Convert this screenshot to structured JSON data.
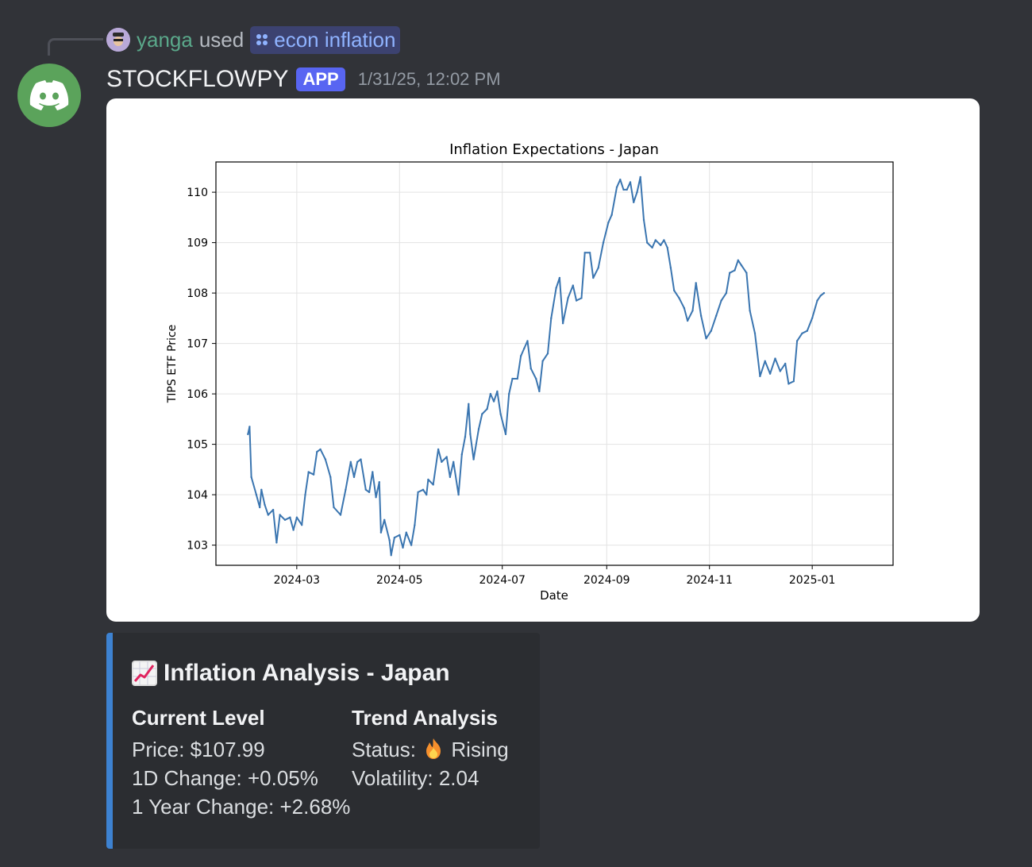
{
  "reply": {
    "user": "yanga",
    "used": "used",
    "command": "econ inflation"
  },
  "message": {
    "author": "STOCKFLOWPY",
    "app_tag": "APP",
    "timestamp": "1/31/25, 12:02 PM",
    "avatar_icon": "discord-logo-icon",
    "avatar_color": "#5ba35b"
  },
  "chart_data": {
    "type": "line",
    "title": "Inflation Expectations - Japan",
    "xlabel": "Date",
    "ylabel": "TIPS ETF Price",
    "grid": true,
    "line_color": "#3a75b0",
    "x_ticks": [
      "2024-03",
      "2024-05",
      "2024-07",
      "2024-09",
      "2024-11",
      "2025-01"
    ],
    "y_ticks": [
      103,
      104,
      105,
      106,
      107,
      108,
      109,
      110
    ],
    "xlim": [
      "2024-01-13",
      "2025-02-18"
    ],
    "ylim": [
      102.6,
      110.6
    ],
    "series": [
      {
        "points": [
          [
            "2024-02-01",
            105.2
          ],
          [
            "2024-02-02",
            105.35
          ],
          [
            "2024-02-03",
            104.35
          ],
          [
            "2024-02-06",
            104.0
          ],
          [
            "2024-02-08",
            103.75
          ],
          [
            "2024-02-09",
            104.1
          ],
          [
            "2024-02-11",
            103.8
          ],
          [
            "2024-02-13",
            103.6
          ],
          [
            "2024-02-16",
            103.7
          ],
          [
            "2024-02-18",
            103.05
          ],
          [
            "2024-02-20",
            103.6
          ],
          [
            "2024-02-23",
            103.5
          ],
          [
            "2024-02-26",
            103.55
          ],
          [
            "2024-02-28",
            103.3
          ],
          [
            "2024-03-01",
            103.55
          ],
          [
            "2024-03-04",
            103.4
          ],
          [
            "2024-03-06",
            104.0
          ],
          [
            "2024-03-08",
            104.45
          ],
          [
            "2024-03-11",
            104.4
          ],
          [
            "2024-03-13",
            104.85
          ],
          [
            "2024-03-15",
            104.9
          ],
          [
            "2024-03-18",
            104.7
          ],
          [
            "2024-03-21",
            104.35
          ],
          [
            "2024-03-23",
            103.75
          ],
          [
            "2024-03-27",
            103.6
          ],
          [
            "2024-03-30",
            104.1
          ],
          [
            "2024-04-02",
            104.65
          ],
          [
            "2024-04-04",
            104.35
          ],
          [
            "2024-04-06",
            104.65
          ],
          [
            "2024-04-08",
            104.7
          ],
          [
            "2024-04-11",
            104.1
          ],
          [
            "2024-04-13",
            104.05
          ],
          [
            "2024-04-15",
            104.45
          ],
          [
            "2024-04-17",
            103.95
          ],
          [
            "2024-04-19",
            104.25
          ],
          [
            "2024-04-20",
            103.25
          ],
          [
            "2024-04-22",
            103.5
          ],
          [
            "2024-04-25",
            103.1
          ],
          [
            "2024-04-26",
            102.8
          ],
          [
            "2024-04-28",
            103.15
          ],
          [
            "2024-05-01",
            103.2
          ],
          [
            "2024-05-03",
            102.95
          ],
          [
            "2024-05-05",
            103.25
          ],
          [
            "2024-05-08",
            103.0
          ],
          [
            "2024-05-10",
            103.4
          ],
          [
            "2024-05-12",
            104.05
          ],
          [
            "2024-05-15",
            104.1
          ],
          [
            "2024-05-17",
            104.0
          ],
          [
            "2024-05-18",
            104.3
          ],
          [
            "2024-05-21",
            104.2
          ],
          [
            "2024-05-24",
            104.9
          ],
          [
            "2024-05-26",
            104.65
          ],
          [
            "2024-05-29",
            104.75
          ],
          [
            "2024-05-31",
            104.35
          ],
          [
            "2024-06-02",
            104.65
          ],
          [
            "2024-06-05",
            104.0
          ],
          [
            "2024-06-07",
            104.8
          ],
          [
            "2024-06-09",
            105.15
          ],
          [
            "2024-06-11",
            105.8
          ],
          [
            "2024-06-12",
            105.2
          ],
          [
            "2024-06-14",
            104.7
          ],
          [
            "2024-06-17",
            105.3
          ],
          [
            "2024-06-19",
            105.6
          ],
          [
            "2024-06-22",
            105.7
          ],
          [
            "2024-06-24",
            106.0
          ],
          [
            "2024-06-26",
            105.85
          ],
          [
            "2024-06-28",
            106.05
          ],
          [
            "2024-06-30",
            105.6
          ],
          [
            "2024-07-03",
            105.2
          ],
          [
            "2024-07-05",
            106.0
          ],
          [
            "2024-07-07",
            106.3
          ],
          [
            "2024-07-10",
            106.3
          ],
          [
            "2024-07-12",
            106.75
          ],
          [
            "2024-07-14",
            106.9
          ],
          [
            "2024-07-16",
            107.05
          ],
          [
            "2024-07-18",
            106.5
          ],
          [
            "2024-07-21",
            106.3
          ],
          [
            "2024-07-23",
            106.05
          ],
          [
            "2024-07-25",
            106.65
          ],
          [
            "2024-07-28",
            106.8
          ],
          [
            "2024-07-30",
            107.5
          ],
          [
            "2024-08-02",
            108.1
          ],
          [
            "2024-08-04",
            108.3
          ],
          [
            "2024-08-06",
            107.4
          ],
          [
            "2024-08-09",
            107.9
          ],
          [
            "2024-08-12",
            108.15
          ],
          [
            "2024-08-14",
            107.85
          ],
          [
            "2024-08-17",
            107.9
          ],
          [
            "2024-08-19",
            108.8
          ],
          [
            "2024-08-22",
            108.8
          ],
          [
            "2024-08-24",
            108.3
          ],
          [
            "2024-08-27",
            108.5
          ],
          [
            "2024-08-30",
            109.0
          ],
          [
            "2024-09-02",
            109.4
          ],
          [
            "2024-09-04",
            109.55
          ],
          [
            "2024-09-07",
            110.1
          ],
          [
            "2024-09-09",
            110.25
          ],
          [
            "2024-09-11",
            110.05
          ],
          [
            "2024-09-13",
            110.05
          ],
          [
            "2024-09-15",
            110.2
          ],
          [
            "2024-09-17",
            109.8
          ],
          [
            "2024-09-19",
            110.0
          ],
          [
            "2024-09-21",
            110.3
          ],
          [
            "2024-09-23",
            109.45
          ],
          [
            "2024-09-25",
            109.0
          ],
          [
            "2024-09-28",
            108.9
          ],
          [
            "2024-09-30",
            109.05
          ],
          [
            "2024-10-03",
            108.95
          ],
          [
            "2024-10-05",
            109.05
          ],
          [
            "2024-10-07",
            108.9
          ],
          [
            "2024-10-09",
            108.5
          ],
          [
            "2024-10-11",
            108.05
          ],
          [
            "2024-10-14",
            107.9
          ],
          [
            "2024-10-17",
            107.7
          ],
          [
            "2024-10-19",
            107.45
          ],
          [
            "2024-10-22",
            107.65
          ],
          [
            "2024-10-24",
            108.2
          ],
          [
            "2024-10-27",
            107.55
          ],
          [
            "2024-10-30",
            107.1
          ],
          [
            "2024-11-02",
            107.25
          ],
          [
            "2024-11-05",
            107.55
          ],
          [
            "2024-11-08",
            107.85
          ],
          [
            "2024-11-11",
            108.0
          ],
          [
            "2024-11-13",
            108.4
          ],
          [
            "2024-11-16",
            108.45
          ],
          [
            "2024-11-18",
            108.65
          ],
          [
            "2024-11-20",
            108.55
          ],
          [
            "2024-11-23",
            108.4
          ],
          [
            "2024-11-25",
            107.65
          ],
          [
            "2024-11-28",
            107.2
          ],
          [
            "2024-12-01",
            106.35
          ],
          [
            "2024-12-04",
            106.65
          ],
          [
            "2024-12-07",
            106.4
          ],
          [
            "2024-12-10",
            106.7
          ],
          [
            "2024-12-13",
            106.45
          ],
          [
            "2024-12-16",
            106.6
          ],
          [
            "2024-12-18",
            106.2
          ],
          [
            "2024-12-21",
            106.25
          ],
          [
            "2024-12-23",
            107.05
          ],
          [
            "2024-12-26",
            107.2
          ],
          [
            "2024-12-29",
            107.25
          ],
          [
            "2025-01-01",
            107.5
          ],
          [
            "2025-01-04",
            107.85
          ],
          [
            "2025-01-06",
            107.95
          ],
          [
            "2025-01-08",
            108.0
          ]
        ]
      }
    ]
  },
  "embed": {
    "accent_color": "#3d82d1",
    "title_icon": "chart-increasing-emoji-icon",
    "title": "Inflation Analysis - Japan",
    "fields": {
      "current": {
        "name": "Current Level",
        "price": "Price: $107.99",
        "change_1d": "1D Change: +0.05%",
        "change_1y": "1 Year Change: +2.68%"
      },
      "trend": {
        "name": "Trend Analysis",
        "status_label": "Status:",
        "status_icon": "fire-icon",
        "status_value": "Rising",
        "volatility": "Volatility: 2.04"
      }
    }
  }
}
